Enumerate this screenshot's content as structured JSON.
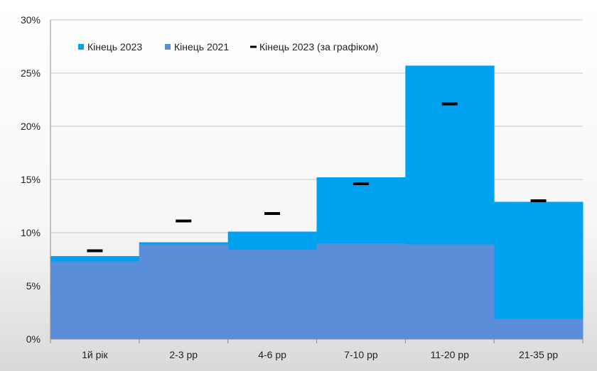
{
  "chart_data": {
    "type": "area",
    "title": "",
    "xlabel": "",
    "ylabel": "",
    "categories": [
      "1й рік",
      "2-3 рр",
      "4-6 рр",
      "7-10 рр",
      "11-20 рр",
      "21-35 рр"
    ],
    "series": [
      {
        "name": "Кінець 2023",
        "kind": "step-area",
        "color": "#00a2ef",
        "values": [
          7.8,
          9.1,
          10.1,
          15.2,
          25.7,
          12.9
        ]
      },
      {
        "name": "Кінець 2021",
        "kind": "step-area",
        "color": "#5b8ed8",
        "values": [
          7.3,
          8.9,
          8.4,
          9.0,
          8.9,
          1.9
        ]
      },
      {
        "name": "Кінець 2023 (за графіком)",
        "kind": "marker-dash",
        "color": "#000000",
        "values": [
          8.3,
          11.1,
          11.8,
          14.6,
          22.1,
          13.0
        ]
      }
    ],
    "ylim": [
      0,
      30
    ],
    "yticks": [
      0,
      5,
      10,
      15,
      20,
      25,
      30
    ],
    "ytick_labels": [
      "0%",
      "5%",
      "10%",
      "15%",
      "20%",
      "25%",
      "30%"
    ],
    "grid": true,
    "legend_position": "top-left"
  }
}
